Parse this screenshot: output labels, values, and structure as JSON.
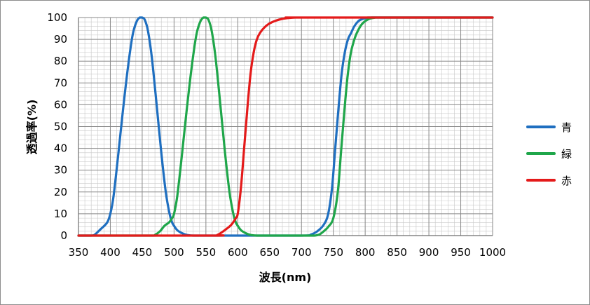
{
  "chart_data": {
    "type": "line",
    "xlabel": "波長(nm)",
    "ylabel": "透過率(%)",
    "xlim": [
      350,
      1000
    ],
    "ylim": [
      0,
      100
    ],
    "x_ticks": [
      350,
      400,
      450,
      500,
      550,
      600,
      650,
      700,
      750,
      800,
      850,
      900,
      950,
      1000
    ],
    "y_ticks": [
      0,
      10,
      20,
      30,
      40,
      50,
      60,
      70,
      80,
      90,
      100
    ],
    "grid": "major and minor",
    "legend_position": "right",
    "series": [
      {
        "name": "青",
        "color": "#1f6fc0",
        "x": [
          350,
          370,
          375,
          385,
          395,
          400,
          405,
          412,
          420,
          428,
          435,
          441,
          446,
          450,
          454,
          459,
          465,
          472,
          480,
          487,
          493,
          497,
          500,
          505,
          512,
          520,
          530,
          540,
          600,
          700,
          715,
          725,
          735,
          742,
          748,
          753,
          758,
          763,
          768,
          773,
          778,
          783,
          790,
          800,
          810,
          820,
          1000
        ],
        "y": [
          0,
          0,
          0.3,
          3,
          6,
          10,
          18,
          36,
          58,
          78,
          92,
          98,
          100,
          100,
          99,
          94,
          82,
          62,
          38,
          20,
          10,
          6,
          4.5,
          2.5,
          1.2,
          0.3,
          0,
          0,
          0,
          0,
          0.5,
          2,
          5,
          10,
          22,
          40,
          58,
          74,
          84,
          90,
          93,
          96,
          98.5,
          99.7,
          100,
          100,
          100
        ]
      },
      {
        "name": "緑",
        "color": "#1fa64a",
        "x": [
          350,
          465,
          470,
          478,
          485,
          492,
          497,
          500,
          505,
          512,
          520,
          528,
          535,
          541,
          546,
          550,
          554,
          559,
          565,
          572,
          580,
          587,
          593,
          597,
          600,
          605,
          612,
          620,
          630,
          640,
          700,
          720,
          728,
          735,
          742,
          750,
          757,
          762,
          767,
          772,
          777,
          782,
          787,
          795,
          805,
          815,
          825,
          1000
        ],
        "y": [
          0,
          0,
          0.3,
          2,
          4.5,
          6,
          8,
          10,
          18,
          36,
          58,
          78,
          92,
          98,
          100,
          100,
          99,
          94,
          82,
          62,
          38,
          20,
          10,
          6,
          4.5,
          2.5,
          1.2,
          0.3,
          0,
          0,
          0,
          0,
          0.5,
          2,
          4,
          8,
          20,
          38,
          56,
          72,
          83,
          89,
          93,
          97,
          99.2,
          99.9,
          100,
          100
        ]
      },
      {
        "name": "赤",
        "color": "#e41a1a",
        "x": [
          350,
          560,
          568,
          575,
          582,
          590,
          597,
          600,
          605,
          610,
          615,
          620,
          625,
          630,
          635,
          642,
          650,
          660,
          670,
          680,
          690,
          700,
          1000
        ],
        "y": [
          0,
          0,
          0.3,
          1.5,
          3,
          5,
          8,
          10,
          22,
          40,
          58,
          74,
          84,
          90,
          93,
          95.5,
          97.3,
          98.6,
          99.4,
          99.8,
          100,
          100,
          100
        ]
      }
    ]
  }
}
